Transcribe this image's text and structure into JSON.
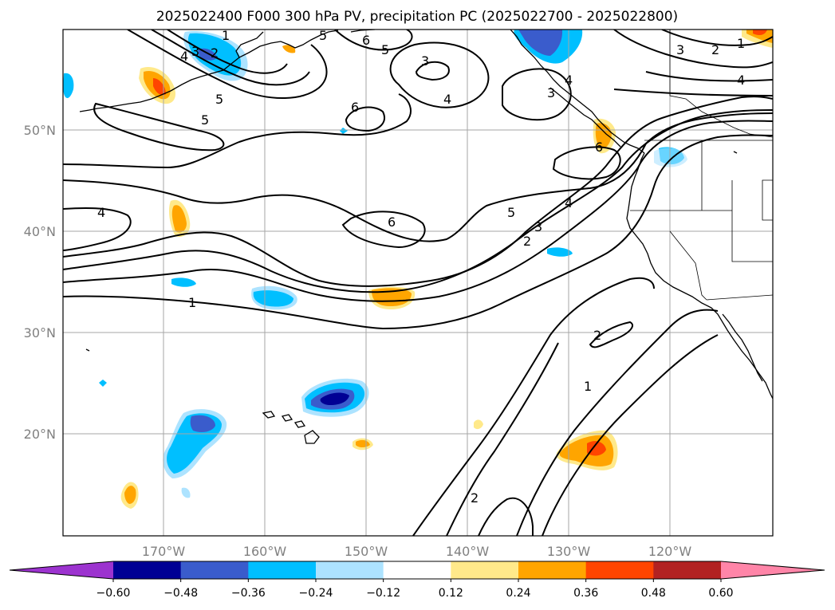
{
  "title": "2025022400 F000 300 hPa PV, precipitation PC (2025022700 - 2025022800)",
  "lon_labels": [
    "170°W",
    "160°W",
    "150°W",
    "140°W",
    "130°W",
    "120°W"
  ],
  "lat_labels": [
    "50°N",
    "40°N",
    "30°N",
    "20°N"
  ],
  "colorbar": {
    "ticks": [
      "−0.60",
      "−0.48",
      "−0.36",
      "−0.24",
      "−0.12",
      "0.12",
      "0.24",
      "0.36",
      "0.48",
      "0.60"
    ],
    "colors": [
      "#9c33cf",
      "#000094",
      "#3a5ccc",
      "#00bfff",
      "#ade3ff",
      "#ffffff",
      "#ffe98a",
      "#ffa500",
      "#ff4500",
      "#b22222",
      "#ff85a8"
    ]
  },
  "contour_labels": [
    "1",
    "2",
    "3",
    "4",
    "5",
    "6"
  ],
  "map_labels": {
    "l1": "1",
    "l1b": "1",
    "l2": "2",
    "l2b": "2",
    "l2c": "2",
    "l3": "3",
    "l3b": "3",
    "l3c": "3",
    "l4": "4",
    "l4b": "4",
    "l4c": "4",
    "l4d": "4",
    "l5": "5",
    "l5b": "5",
    "l5c": "5",
    "l5d": "5",
    "l6": "6",
    "l6b": "6",
    "l6c": "6",
    "l6d": "6",
    "l7": "1",
    "l8": "2",
    "l9": "3",
    "l10": "4",
    "l11": "5",
    "l12": "3",
    "l13": "4",
    "l14": "2",
    "l15": "1"
  }
}
